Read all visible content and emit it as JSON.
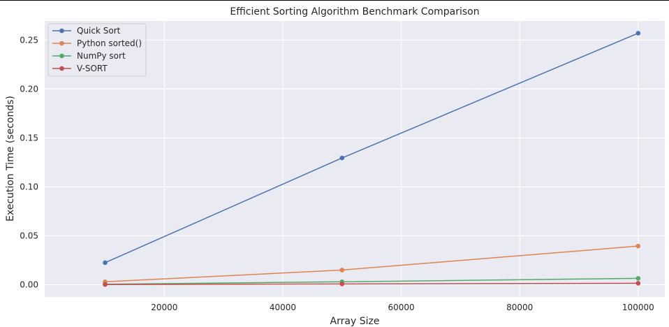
{
  "chart_data": {
    "type": "line",
    "title": "Efficient Sorting Algorithm Benchmark Comparison",
    "xlabel": "Array Size",
    "ylabel": "Execution Time (seconds)",
    "x": [
      10000,
      50000,
      100000
    ],
    "xlim": [
      -200,
      104500
    ],
    "ylim": [
      -0.0125,
      0.2695
    ],
    "xticks": [
      20000,
      40000,
      60000,
      80000,
      100000
    ],
    "xtick_labels": [
      "20000",
      "40000",
      "60000",
      "80000",
      "100000"
    ],
    "yticks": [
      0.0,
      0.05,
      0.1,
      0.15,
      0.2,
      0.25
    ],
    "ytick_labels": [
      "0.00",
      "0.05",
      "0.10",
      "0.15",
      "0.20",
      "0.25"
    ],
    "grid": true,
    "legend_position": "top-left",
    "background": "#eaeaf2",
    "series": [
      {
        "name": "Quick Sort",
        "color": "#4c72b0",
        "values": [
          0.0225,
          0.1295,
          0.257
        ]
      },
      {
        "name": "Python sorted()",
        "color": "#dd8452",
        "values": [
          0.003,
          0.015,
          0.0395
        ]
      },
      {
        "name": "NumPy sort",
        "color": "#55a868",
        "values": [
          0.0005,
          0.003,
          0.0065
        ]
      },
      {
        "name": "V-SORT",
        "color": "#c44e52",
        "values": [
          0.0002,
          0.0008,
          0.0015
        ]
      }
    ]
  }
}
